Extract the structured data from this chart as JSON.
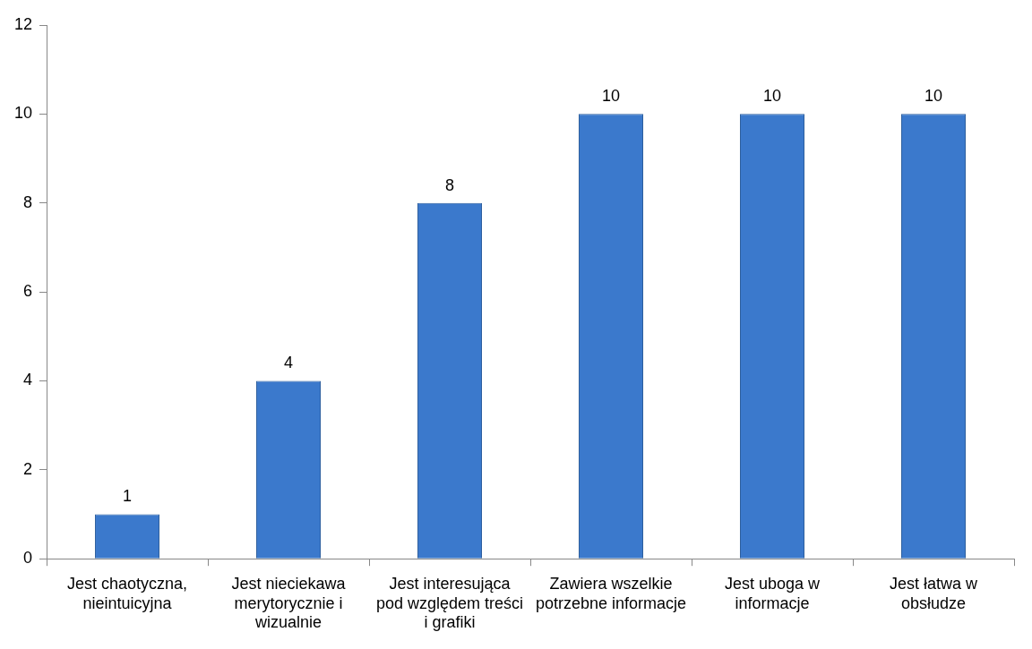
{
  "chart_data": {
    "type": "bar",
    "categories": [
      "Jest chaotyczna, nieintuicyjna",
      "Jest nieciekawa merytorycznie i wizualnie",
      "Jest interesująca pod względem treści i grafiki",
      "Zawiera wszelkie potrzebne informacje",
      "Jest uboga w informacje",
      "Jest łatwa w obsłudze"
    ],
    "values": [
      1,
      4,
      8,
      10,
      10,
      10
    ],
    "color": "#3b79cc",
    "ylim": [
      0,
      12
    ],
    "yticks": [
      0,
      2,
      4,
      6,
      8,
      10,
      12
    ],
    "grid": false,
    "legend": false,
    "data_labels": true
  }
}
